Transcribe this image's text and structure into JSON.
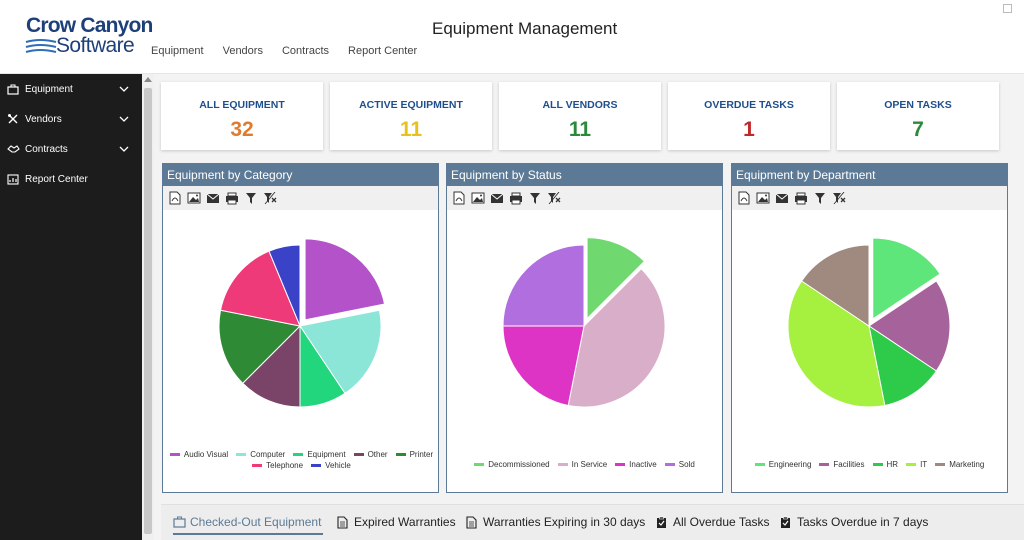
{
  "header": {
    "logo_line1": "Crow Canyon",
    "logo_line2": "Software",
    "title": "Equipment Management",
    "nav": [
      "Equipment",
      "Vendors",
      "Contracts",
      "Report Center"
    ]
  },
  "sidebar": {
    "items": [
      {
        "label": "Equipment",
        "icon": "briefcase-icon",
        "expandable": true
      },
      {
        "label": "Vendors",
        "icon": "tools-icon",
        "expandable": true
      },
      {
        "label": "Contracts",
        "icon": "handshake-icon",
        "expandable": true
      },
      {
        "label": "Report Center",
        "icon": "report-icon",
        "expandable": false
      }
    ]
  },
  "stats": [
    {
      "label": "ALL EQUIPMENT",
      "value": "32",
      "color": "#e07a2f"
    },
    {
      "label": "ACTIVE EQUIPMENT",
      "value": "11",
      "color": "#e8c21a"
    },
    {
      "label": "ALL VENDORS",
      "value": "11",
      "color": "#2a8a3a"
    },
    {
      "label": "OVERDUE TASKS",
      "value": "1",
      "color": "#c0282a"
    },
    {
      "label": "OPEN TASKS",
      "value": "7",
      "color": "#2a8a3a"
    }
  ],
  "toolbar_icons": [
    "pdf-icon",
    "image-icon",
    "mail-icon",
    "print-icon",
    "filter-icon",
    "clear-filter-icon"
  ],
  "chart_data": [
    {
      "type": "pie",
      "title": "Equipment by Category",
      "categories": [
        "Audio Visual",
        "Computer",
        "Equipment",
        "Other",
        "Printer",
        "Telephone",
        "Vehicle"
      ],
      "values": [
        7,
        6,
        3,
        4,
        5,
        5,
        2
      ],
      "colors": [
        "#b352c9",
        "#8ce6d8",
        "#22d67e",
        "#7a4468",
        "#2f8a35",
        "#ef3a7a",
        "#3a42c8"
      ],
      "exploded": [
        0
      ],
      "legend_position": "bottom"
    },
    {
      "type": "pie",
      "title": "Equipment by Status",
      "categories": [
        "Decommissioned",
        "In Service",
        "Inactive",
        "Sold"
      ],
      "values": [
        4,
        13,
        7,
        8
      ],
      "colors": [
        "#6fd86f",
        "#d8aec8",
        "#de34c6",
        "#b06ede"
      ],
      "exploded": [
        0
      ],
      "legend_position": "bottom"
    },
    {
      "type": "pie",
      "title": "Equipment by Department",
      "categories": [
        "Engineering",
        "Facilities",
        "HR",
        "IT",
        "Marketing"
      ],
      "values": [
        5,
        6,
        4,
        12,
        5
      ],
      "colors": [
        "#5ee67a",
        "#a6629a",
        "#2ecb4a",
        "#a6f040",
        "#a08a80"
      ],
      "exploded": [
        0
      ],
      "legend_position": "bottom"
    }
  ],
  "tabs": [
    {
      "label": "Checked-Out Equipment",
      "icon": "briefcase-icon",
      "active": true
    },
    {
      "label": "Expired Warranties",
      "icon": "document-icon",
      "active": false
    },
    {
      "label": "Warranties Expiring in 30 days",
      "icon": "document-icon",
      "active": false
    },
    {
      "label": "All Overdue Tasks",
      "icon": "clipboard-check-icon",
      "active": false
    },
    {
      "label": "Tasks Overdue in 7 days",
      "icon": "clipboard-check-icon",
      "active": false
    }
  ]
}
